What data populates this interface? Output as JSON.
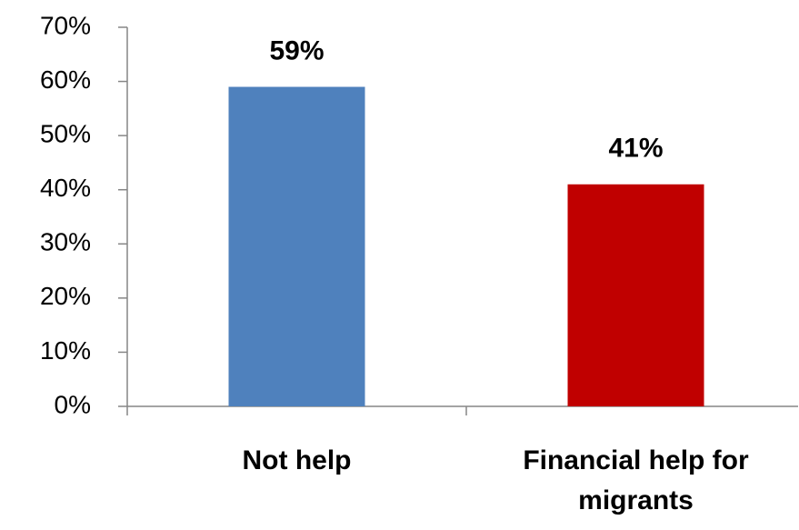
{
  "chart_data": {
    "type": "bar",
    "categories": [
      "Not help",
      "Financial help for migrants"
    ],
    "values": [
      59,
      41
    ],
    "value_labels": [
      "59%",
      "41%"
    ],
    "colors": [
      "#4f81bd",
      "#c00000"
    ],
    "ylim": [
      0,
      70
    ],
    "yticks": [
      {
        "value": 0,
        "label": "0%"
      },
      {
        "value": 10,
        "label": "10%"
      },
      {
        "value": 20,
        "label": "20%"
      },
      {
        "value": 30,
        "label": "30%"
      },
      {
        "value": 40,
        "label": "40%"
      },
      {
        "value": 50,
        "label": "50%"
      },
      {
        "value": 60,
        "label": "60%"
      },
      {
        "value": 70,
        "label": "70%"
      }
    ]
  }
}
